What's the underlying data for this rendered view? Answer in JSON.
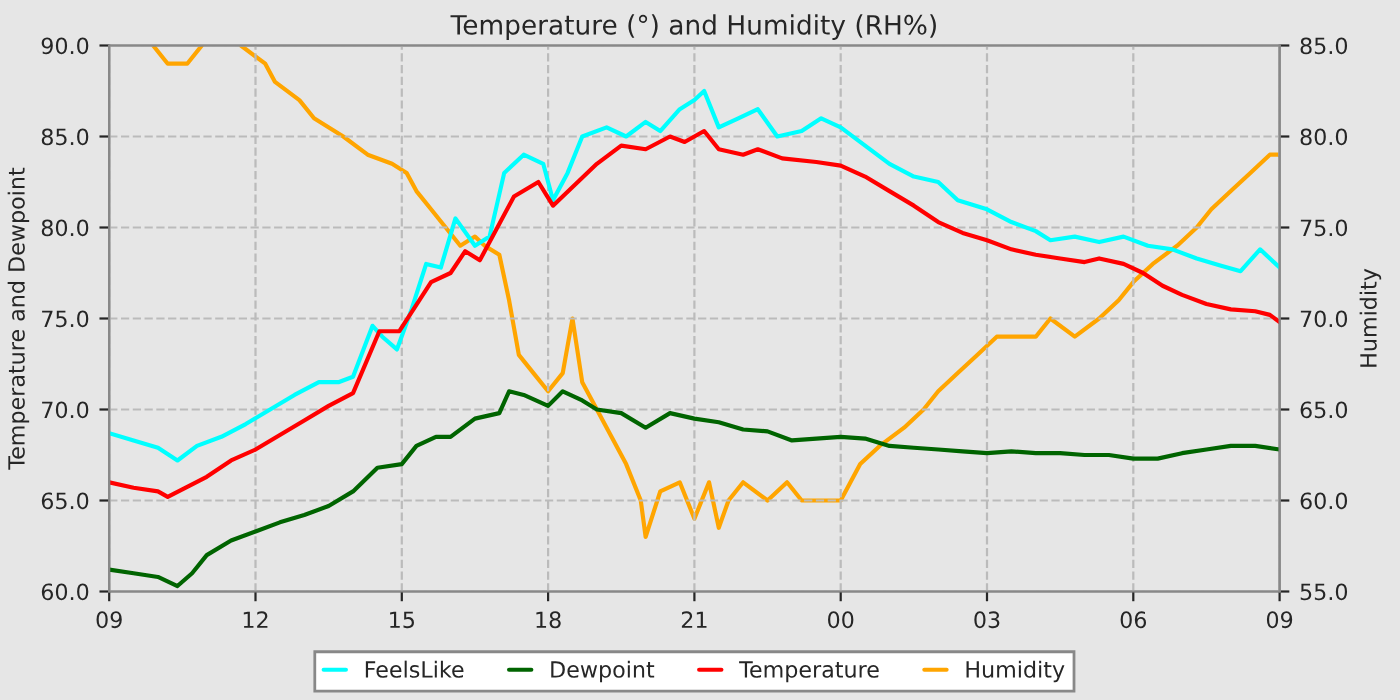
{
  "chart_data": {
    "type": "line",
    "title": "Temperature (°) and Humidity (RH%)",
    "ylabel": "Temperature and Dewpoint",
    "y2label": "Humidity",
    "xlim": [
      9,
      33
    ],
    "xticks": [
      {
        "value": 9,
        "label": "09"
      },
      {
        "value": 12,
        "label": "12"
      },
      {
        "value": 15,
        "label": "15"
      },
      {
        "value": 18,
        "label": "18"
      },
      {
        "value": 21,
        "label": "21"
      },
      {
        "value": 24,
        "label": "00"
      },
      {
        "value": 27,
        "label": "03"
      },
      {
        "value": 30,
        "label": "06"
      },
      {
        "value": 33,
        "label": "09"
      }
    ],
    "ylim": [
      60,
      90
    ],
    "yticks": [
      {
        "value": 60,
        "label": "60.0"
      },
      {
        "value": 65,
        "label": "65.0"
      },
      {
        "value": 70,
        "label": "70.0"
      },
      {
        "value": 75,
        "label": "75.0"
      },
      {
        "value": 80,
        "label": "80.0"
      },
      {
        "value": 85,
        "label": "85.0"
      },
      {
        "value": 90,
        "label": "90.0"
      }
    ],
    "y2lim": [
      55,
      85
    ],
    "y2ticks": [
      {
        "value": 55,
        "label": "55.0"
      },
      {
        "value": 60,
        "label": "60.0"
      },
      {
        "value": 65,
        "label": "65.0"
      },
      {
        "value": 70,
        "label": "70.0"
      },
      {
        "value": 75,
        "label": "75.0"
      },
      {
        "value": 80,
        "label": "80.0"
      },
      {
        "value": 85,
        "label": "85.0"
      }
    ],
    "grid": true,
    "legend": "bottom",
    "series": [
      {
        "name": "FeelsLike",
        "color": "#00ffff",
        "x": [
          9,
          9.5,
          10,
          10.4,
          10.8,
          11.3,
          11.8,
          12.3,
          12.8,
          13.3,
          13.7,
          14,
          14.4,
          14.6,
          14.9,
          15.2,
          15.5,
          15.8,
          16.1,
          16.5,
          16.8,
          17.1,
          17.5,
          17.9,
          18.1,
          18.4,
          18.7,
          19.2,
          19.6,
          20,
          20.3,
          20.7,
          21,
          21.2,
          21.5,
          21.9,
          22.3,
          22.7,
          23.2,
          23.6,
          24,
          24.5,
          25,
          25.5,
          26,
          26.4,
          27,
          27.5,
          28,
          28.3,
          28.8,
          29.3,
          29.8,
          30.3,
          30.8,
          31.3,
          31.8,
          32.2,
          32.6,
          33
        ],
        "values": [
          68.7,
          68.3,
          67.9,
          67.2,
          68,
          68.5,
          69.2,
          70,
          70.8,
          71.5,
          71.5,
          71.8,
          74.6,
          74,
          73.3,
          75.5,
          78,
          77.8,
          80.5,
          79,
          79.5,
          83,
          84,
          83.5,
          81.5,
          83,
          85,
          85.5,
          85,
          85.8,
          85.3,
          86.5,
          87,
          87.5,
          85.5,
          86,
          86.5,
          85,
          85.3,
          86,
          85.5,
          84.5,
          83.5,
          82.8,
          82.5,
          81.5,
          81,
          80.3,
          79.8,
          79.3,
          79.5,
          79.2,
          79.5,
          79,
          78.8,
          78.3,
          77.9,
          77.6,
          78.8,
          77.8
        ]
      },
      {
        "name": "Dewpoint",
        "color": "#006400",
        "x": [
          9,
          9.5,
          10,
          10.4,
          10.7,
          11,
          11.5,
          12,
          12.5,
          13,
          13.5,
          14,
          14.5,
          15,
          15.3,
          15.7,
          16,
          16.5,
          17,
          17.2,
          17.5,
          18,
          18.3,
          18.7,
          19,
          19.5,
          20,
          20.5,
          21,
          21.5,
          22,
          22.5,
          23,
          23.5,
          24,
          24.5,
          25,
          25.5,
          26,
          26.5,
          27,
          27.5,
          28,
          28.5,
          29,
          29.5,
          30,
          30.5,
          31,
          31.5,
          32,
          32.5,
          33
        ],
        "values": [
          61.2,
          61,
          60.8,
          60.3,
          61,
          62,
          62.8,
          63.3,
          63.8,
          64.2,
          64.7,
          65.5,
          66.8,
          67,
          68,
          68.5,
          68.5,
          69.5,
          69.8,
          71,
          70.8,
          70.2,
          71,
          70.5,
          70,
          69.8,
          69,
          69.8,
          69.5,
          69.3,
          68.9,
          68.8,
          68.3,
          68.4,
          68.5,
          68.4,
          68,
          67.9,
          67.8,
          67.7,
          67.6,
          67.7,
          67.6,
          67.6,
          67.5,
          67.5,
          67.3,
          67.3,
          67.6,
          67.8,
          68,
          68,
          67.8
        ]
      },
      {
        "name": "Temperature",
        "color": "#ff0000",
        "x": [
          9,
          9.5,
          10,
          10.2,
          11,
          11.5,
          12,
          12.5,
          13,
          13.5,
          14,
          14.54,
          14.95,
          15.6,
          16,
          16.3,
          16.6,
          17.3,
          17.8,
          18.1,
          19,
          19.5,
          20,
          20.5,
          20.8,
          21.2,
          21.5,
          22,
          22.3,
          22.8,
          23.5,
          24,
          24.5,
          25,
          25.5,
          26,
          26.5,
          27,
          27.5,
          28,
          28.5,
          29,
          29.3,
          29.8,
          30.2,
          30.6,
          31,
          31.5,
          32,
          32.5,
          32.8,
          33
        ],
        "values": [
          66,
          65.7,
          65.5,
          65.2,
          66.3,
          67.2,
          67.8,
          68.6,
          69.4,
          70.2,
          70.9,
          74.3,
          74.3,
          77,
          77.5,
          78.7,
          78.2,
          81.7,
          82.5,
          81.2,
          83.5,
          84.5,
          84.3,
          85,
          84.7,
          85.3,
          84.3,
          84,
          84.3,
          83.8,
          83.6,
          83.4,
          82.8,
          82,
          81.2,
          80.3,
          79.7,
          79.3,
          78.8,
          78.5,
          78.3,
          78.1,
          78.3,
          78,
          77.5,
          76.8,
          76.3,
          75.8,
          75.5,
          75.4,
          75.2,
          74.8
        ]
      },
      {
        "name": "Humidity",
        "color": "#ffa500",
        "axis": "y2",
        "x": [
          9.9,
          10.2,
          10.6,
          10.9,
          11.6,
          11.7,
          12.2,
          12.4,
          12.9,
          13.2,
          13.8,
          14.3,
          14.8,
          15.1,
          15.3,
          15.6,
          15.9,
          16.2,
          16.5,
          16.7,
          17,
          17.2,
          17.4,
          17.7,
          18,
          18.3,
          18.5,
          18.7,
          19,
          19.3,
          19.6,
          19.9,
          20,
          20.3,
          20.7,
          21,
          21.3,
          21.5,
          21.7,
          22,
          22.5,
          22.9,
          23.2,
          24,
          24.2,
          24.4,
          24.8,
          25.3,
          25.7,
          26,
          26.4,
          26.8,
          27.2,
          28,
          28.3,
          28.8,
          29.3,
          29.7,
          30,
          30.4,
          30.9,
          31.3,
          31.6,
          32,
          32.4,
          32.8,
          33
        ],
        "values": [
          85,
          84,
          84,
          85,
          null,
          85,
          84,
          83,
          82,
          81,
          80,
          79,
          78.5,
          78,
          77,
          76,
          75,
          74,
          74.5,
          74,
          73.5,
          71,
          68,
          67,
          66,
          67,
          70,
          66.5,
          65,
          63.5,
          62,
          60,
          58,
          60.5,
          61,
          59,
          61,
          58.5,
          60,
          61,
          60,
          61,
          60,
          60,
          61,
          62,
          63,
          64,
          65,
          66,
          67,
          68,
          69,
          69,
          70,
          69,
          70,
          71,
          72,
          73,
          74,
          75,
          76,
          77,
          78,
          79,
          79
        ]
      }
    ]
  }
}
